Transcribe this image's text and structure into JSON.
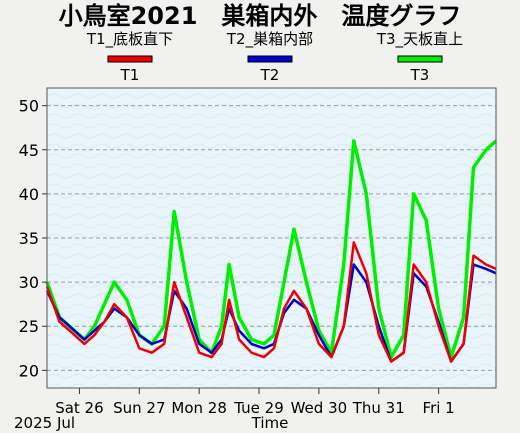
{
  "chart_data": {
    "type": "line",
    "title": "小鳥室2021　巣箱内外　温度グラフ",
    "xlabel": "Time",
    "date_label": "2025 Jul",
    "ylabel": "",
    "ylim": [
      18,
      52
    ],
    "yticks": [
      20,
      25,
      30,
      35,
      40,
      45,
      50
    ],
    "xlim": [
      "2025-07-25T11:00",
      "2025-08-01T23:00"
    ],
    "xticks": [
      {
        "label": "Sat 26",
        "t": "2025-07-26T00:00"
      },
      {
        "label": "Sun 27",
        "t": "2025-07-27T00:00"
      },
      {
        "label": "Mon 28",
        "t": "2025-07-28T00:00"
      },
      {
        "label": "Tue 29",
        "t": "2025-07-29T00:00"
      },
      {
        "label": "Wed 30",
        "t": "2025-07-30T00:00"
      },
      {
        "label": "Thu 31",
        "t": "2025-07-31T00:00"
      },
      {
        "label": "Fri 1",
        "t": "2025-08-01T00:00"
      }
    ],
    "grid": true,
    "legend_position": "top",
    "series": [
      {
        "name": "T1",
        "description": "T1_底板直下",
        "color": "#ee0000",
        "x": [
          "2025-07-25T11:00",
          "2025-07-25T16:00",
          "2025-07-25T20:00",
          "2025-07-26T02:00",
          "2025-07-26T06:00",
          "2025-07-26T10:00",
          "2025-07-26T14:00",
          "2025-07-26T19:00",
          "2025-07-27T00:00",
          "2025-07-27T05:00",
          "2025-07-27T10:00",
          "2025-07-27T14:00",
          "2025-07-27T19:00",
          "2025-07-28T00:00",
          "2025-07-28T05:00",
          "2025-07-28T09:00",
          "2025-07-28T12:00",
          "2025-07-28T16:00",
          "2025-07-28T21:00",
          "2025-07-29T02:00",
          "2025-07-29T06:00",
          "2025-07-29T10:00",
          "2025-07-29T14:00",
          "2025-07-29T19:00",
          "2025-07-30T00:00",
          "2025-07-30T05:00",
          "2025-07-30T10:00",
          "2025-07-30T14:00",
          "2025-07-30T19:00",
          "2025-07-31T00:00",
          "2025-07-31T05:00",
          "2025-07-31T10:00",
          "2025-07-31T14:00",
          "2025-07-31T19:00",
          "2025-08-01T00:00",
          "2025-08-01T05:00",
          "2025-08-01T10:00",
          "2025-08-01T14:00",
          "2025-08-01T19:00",
          "2025-08-01T23:00"
        ],
        "y": [
          29.5,
          25.5,
          24.5,
          23,
          24,
          25.5,
          27.5,
          26,
          22.5,
          22,
          23,
          30,
          26,
          22,
          21.5,
          23,
          28,
          23.5,
          22,
          21.5,
          22.5,
          27,
          29,
          27,
          23,
          21.5,
          25,
          34.5,
          31,
          24,
          21,
          22,
          32,
          30,
          25,
          21,
          23,
          33,
          32,
          31.5
        ]
      },
      {
        "name": "T2",
        "description": "T2_巣箱内部",
        "color": "#0000cc",
        "x": [
          "2025-07-25T11:00",
          "2025-07-25T16:00",
          "2025-07-25T20:00",
          "2025-07-26T02:00",
          "2025-07-26T06:00",
          "2025-07-26T10:00",
          "2025-07-26T14:00",
          "2025-07-26T19:00",
          "2025-07-27T00:00",
          "2025-07-27T05:00",
          "2025-07-27T10:00",
          "2025-07-27T14:00",
          "2025-07-27T19:00",
          "2025-07-28T00:00",
          "2025-07-28T05:00",
          "2025-07-28T09:00",
          "2025-07-28T12:00",
          "2025-07-28T16:00",
          "2025-07-28T21:00",
          "2025-07-29T02:00",
          "2025-07-29T06:00",
          "2025-07-29T10:00",
          "2025-07-29T14:00",
          "2025-07-29T19:00",
          "2025-07-30T00:00",
          "2025-07-30T05:00",
          "2025-07-30T10:00",
          "2025-07-30T14:00",
          "2025-07-30T19:00",
          "2025-07-31T00:00",
          "2025-07-31T05:00",
          "2025-07-31T10:00",
          "2025-07-31T14:00",
          "2025-07-31T19:00",
          "2025-08-01T00:00",
          "2025-08-01T05:00",
          "2025-08-01T10:00",
          "2025-08-01T14:00",
          "2025-08-01T19:00",
          "2025-08-01T23:00"
        ],
        "y": [
          29,
          26,
          25,
          23.5,
          24.5,
          25.5,
          27,
          26,
          24,
          23,
          23.5,
          29,
          27,
          23,
          22,
          23.5,
          27,
          24.5,
          23,
          22.5,
          23,
          26.5,
          28,
          27,
          24,
          21.5,
          25,
          32,
          30,
          25,
          21,
          22,
          31,
          29.5,
          25.5,
          21,
          23,
          32,
          31.5,
          31
        ]
      },
      {
        "name": "T3",
        "description": "T3_天板直上",
        "color": "#00ee00",
        "x": [
          "2025-07-25T11:00",
          "2025-07-25T16:00",
          "2025-07-25T20:00",
          "2025-07-26T02:00",
          "2025-07-26T06:00",
          "2025-07-26T10:00",
          "2025-07-26T14:00",
          "2025-07-26T19:00",
          "2025-07-27T00:00",
          "2025-07-27T05:00",
          "2025-07-27T10:00",
          "2025-07-27T14:00",
          "2025-07-27T19:00",
          "2025-07-28T00:00",
          "2025-07-28T05:00",
          "2025-07-28T09:00",
          "2025-07-28T12:00",
          "2025-07-28T16:00",
          "2025-07-28T21:00",
          "2025-07-29T02:00",
          "2025-07-29T06:00",
          "2025-07-29T10:00",
          "2025-07-29T14:00",
          "2025-07-29T19:00",
          "2025-07-30T00:00",
          "2025-07-30T05:00",
          "2025-07-30T10:00",
          "2025-07-30T14:00",
          "2025-07-30T19:00",
          "2025-07-31T00:00",
          "2025-07-31T05:00",
          "2025-07-31T10:00",
          "2025-07-31T14:00",
          "2025-07-31T19:00",
          "2025-08-01T00:00",
          "2025-08-01T05:00",
          "2025-08-01T10:00",
          "2025-08-01T14:00",
          "2025-08-01T19:00",
          "2025-08-01T23:00"
        ],
        "y": [
          30,
          26,
          25,
          23.5,
          25,
          27.5,
          30,
          28,
          24,
          23,
          25,
          38,
          30,
          23.5,
          22,
          25,
          32,
          26,
          23.5,
          23,
          24,
          30,
          36,
          30,
          24.5,
          22,
          32,
          46,
          40,
          27,
          21.5,
          24,
          40,
          37,
          27,
          21.5,
          26,
          43,
          45,
          46
        ]
      }
    ]
  },
  "background": {
    "plot": "#e9f5fb",
    "page": "#f1f1ef",
    "grid": "#8fa0a8"
  }
}
